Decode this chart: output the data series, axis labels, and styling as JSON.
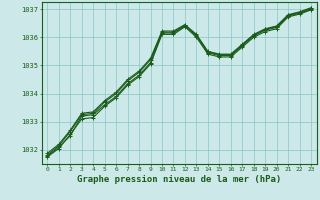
{
  "bg_color": "#cce8e8",
  "grid_color": "#88c8c8",
  "line_color": "#1a5c1a",
  "xlabel": "Graphe pression niveau de la mer (hPa)",
  "xlim": [
    -0.5,
    23.5
  ],
  "ylim": [
    1031.5,
    1037.25
  ],
  "yticks": [
    1032,
    1033,
    1034,
    1035,
    1036,
    1037
  ],
  "xticks": [
    0,
    1,
    2,
    3,
    4,
    5,
    6,
    7,
    8,
    9,
    10,
    11,
    12,
    13,
    14,
    15,
    16,
    17,
    18,
    19,
    20,
    21,
    22,
    23
  ],
  "series": [
    [
      1031.78,
      1032.1,
      1032.5,
      1033.2,
      1033.25,
      1033.6,
      1033.9,
      1034.35,
      1034.65,
      1035.1,
      1036.15,
      1036.15,
      1036.4,
      1036.05,
      1035.45,
      1035.35,
      1035.35,
      1035.7,
      1036.05,
      1036.25,
      1036.35,
      1036.75,
      1036.85,
      1037.0
    ],
    [
      1031.82,
      1032.15,
      1032.65,
      1033.25,
      1033.3,
      1033.7,
      1034.0,
      1034.45,
      1034.75,
      1035.2,
      1036.18,
      1036.18,
      1036.42,
      1036.08,
      1035.48,
      1035.38,
      1035.38,
      1035.72,
      1036.08,
      1036.28,
      1036.38,
      1036.78,
      1036.88,
      1037.02
    ],
    [
      1031.75,
      1032.05,
      1032.55,
      1033.1,
      1033.15,
      1033.55,
      1033.85,
      1034.3,
      1034.6,
      1035.05,
      1036.1,
      1036.1,
      1036.37,
      1036.0,
      1035.4,
      1035.3,
      1035.3,
      1035.65,
      1036.0,
      1036.2,
      1036.3,
      1036.72,
      1036.82,
      1036.97
    ],
    [
      1031.88,
      1032.2,
      1032.7,
      1033.3,
      1033.35,
      1033.75,
      1034.05,
      1034.5,
      1034.8,
      1035.25,
      1036.22,
      1036.22,
      1036.45,
      1036.1,
      1035.5,
      1035.4,
      1035.4,
      1035.75,
      1036.1,
      1036.3,
      1036.4,
      1036.8,
      1036.9,
      1037.05
    ]
  ]
}
